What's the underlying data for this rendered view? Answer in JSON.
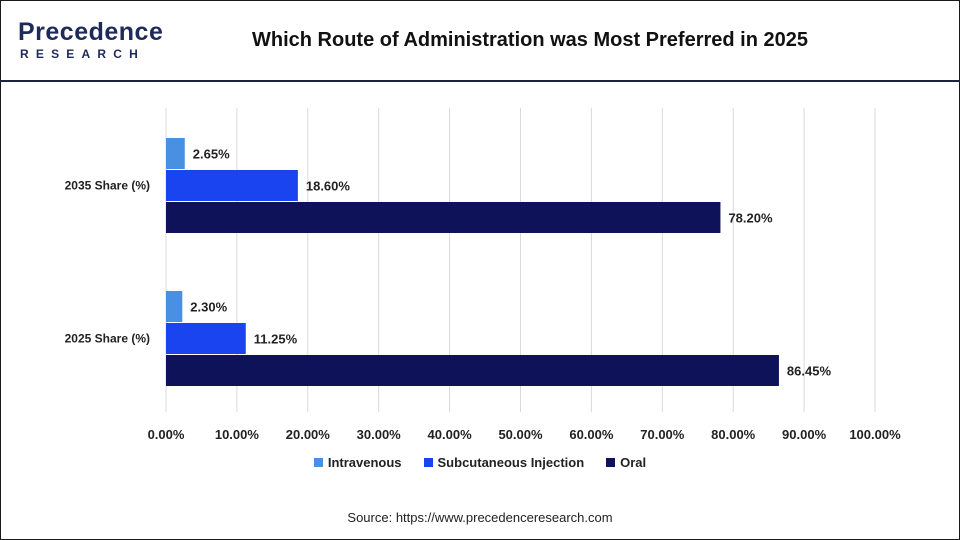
{
  "header": {
    "logo_text": "Precedence",
    "logo_subtext": "RESEARCH",
    "title": "Which Route of Administration was Most Preferred in 2025"
  },
  "colors": {
    "intravenous": "#4a90e2",
    "subcutaneous": "#1a44f0",
    "oral": "#0d1259",
    "grid": "#d9d9d9",
    "text": "#222222"
  },
  "chart_data": {
    "type": "bar",
    "orientation": "horizontal",
    "categories": [
      "2035 Share (%)",
      "2025 Share (%)"
    ],
    "series": [
      {
        "name": "Intravenous",
        "values": [
          2.65,
          2.3
        ],
        "labels": [
          "2.65%",
          "2.30%"
        ]
      },
      {
        "name": "Subcutaneous Injection",
        "values": [
          18.6,
          11.25
        ],
        "labels": [
          "18.60%",
          "11.25%"
        ]
      },
      {
        "name": "Oral",
        "values": [
          78.2,
          86.45
        ],
        "labels": [
          "78.20%",
          "86.45%"
        ]
      }
    ],
    "xlim": [
      0,
      100
    ],
    "xticks": [
      0,
      10,
      20,
      30,
      40,
      50,
      60,
      70,
      80,
      90,
      100
    ],
    "xtick_labels": [
      "0.00%",
      "10.00%",
      "20.00%",
      "30.00%",
      "40.00%",
      "50.00%",
      "60.00%",
      "70.00%",
      "80.00%",
      "90.00%",
      "100.00%"
    ],
    "grid": true,
    "legend_position": "bottom"
  },
  "legend": {
    "items": [
      "Intravenous",
      "Subcutaneous Injection",
      "Oral"
    ]
  },
  "footer": {
    "source": "Source: https://www.precedenceresearch.com"
  }
}
